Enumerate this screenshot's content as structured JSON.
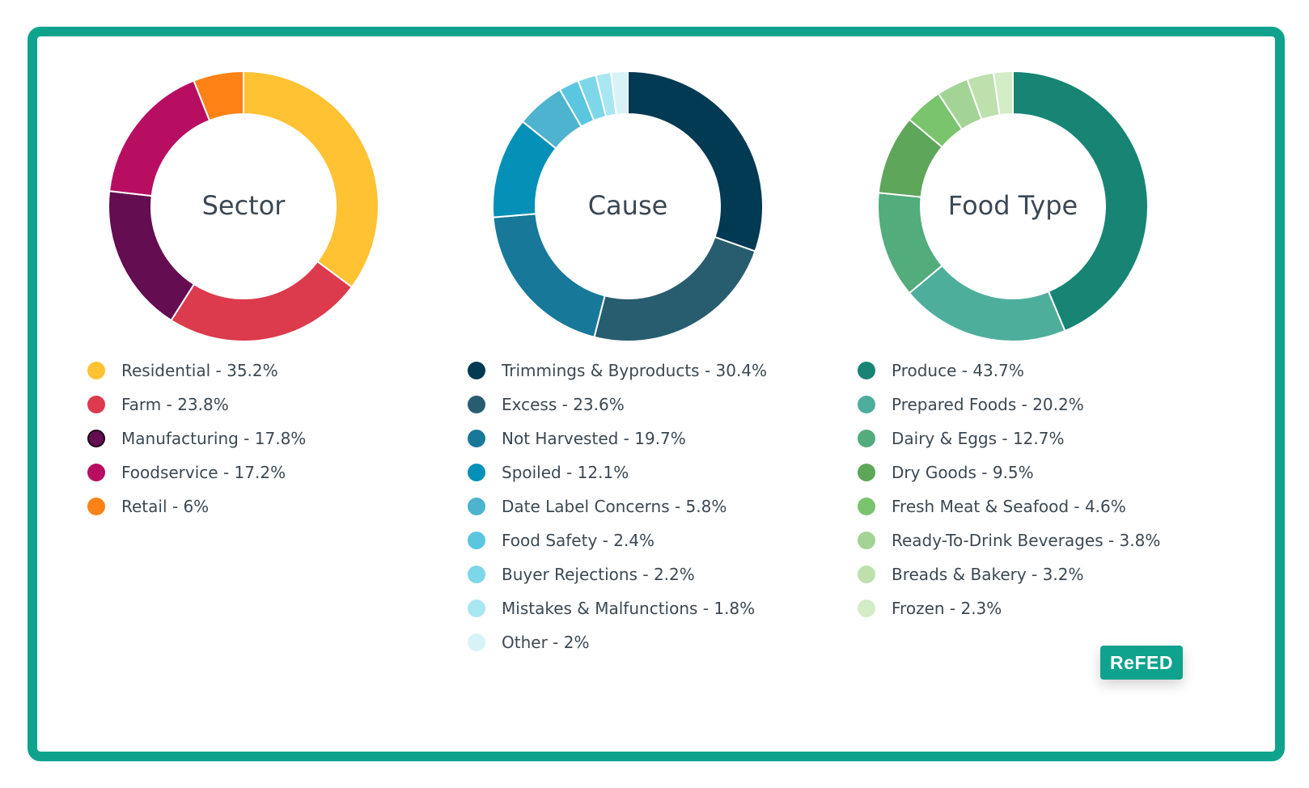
{
  "brand": {
    "name": "ReFED",
    "frame_color": "#0fa38d"
  },
  "chart_data": [
    {
      "type": "pie",
      "title": "Sector",
      "series": [
        {
          "name": "Residential",
          "value": 35.2,
          "label": "Residential - 35.2%",
          "color": "#ffc233"
        },
        {
          "name": "Farm",
          "value": 23.8,
          "label": "Farm - 23.8%",
          "color": "#dc3a4d"
        },
        {
          "name": "Manufacturing",
          "value": 17.8,
          "label": "Manufacturing - 17.8%",
          "color": "#640d50"
        },
        {
          "name": "Foodservice",
          "value": 17.2,
          "label": "Foodservice - 17.2%",
          "color": "#b80e62"
        },
        {
          "name": "Retail",
          "value": 6,
          "label": "Retail - 6%",
          "color": "#ff8216"
        }
      ]
    },
    {
      "type": "pie",
      "title": "Cause",
      "series": [
        {
          "name": "Trimmings & Byproducts",
          "value": 30.4,
          "label": "Trimmings & Byproducts - 30.4%",
          "color": "#023953"
        },
        {
          "name": "Excess",
          "value": 23.6,
          "label": "Excess - 23.6%",
          "color": "#285d70"
        },
        {
          "name": "Not Harvested",
          "value": 19.7,
          "label": "Not Harvested - 19.7%",
          "color": "#17789a"
        },
        {
          "name": "Spoiled",
          "value": 12.1,
          "label": "Spoiled - 12.1%",
          "color": "#0590b8"
        },
        {
          "name": "Date Label Concerns",
          "value": 5.8,
          "label": "Date Label Concerns - 5.8%",
          "color": "#4db3ce"
        },
        {
          "name": "Food Safety",
          "value": 2.4,
          "label": "Food Safety - 2.4%",
          "color": "#5ac6df"
        },
        {
          "name": "Buyer Rejections",
          "value": 2.2,
          "label": "Buyer Rejections - 2.2%",
          "color": "#7ed6e9"
        },
        {
          "name": "Mistakes & Malfunctions",
          "value": 1.8,
          "label": "Mistakes & Malfunctions - 1.8%",
          "color": "#a8e6f2"
        },
        {
          "name": "Other",
          "value": 2,
          "label": "Other - 2%",
          "color": "#d7f3f8"
        }
      ]
    },
    {
      "type": "pie",
      "title": "Food Type",
      "series": [
        {
          "name": "Produce",
          "value": 43.7,
          "label": "Produce - 43.7%",
          "color": "#178474"
        },
        {
          "name": "Prepared Foods",
          "value": 20.2,
          "label": "Prepared Foods - 20.2%",
          "color": "#4eae9c"
        },
        {
          "name": "Dairy & Eggs",
          "value": 12.7,
          "label": "Dairy & Eggs - 12.7%",
          "color": "#52ac7c"
        },
        {
          "name": "Dry Goods",
          "value": 9.5,
          "label": "Dry Goods - 9.5%",
          "color": "#5ea65a"
        },
        {
          "name": "Fresh Meat & Seafood",
          "value": 4.6,
          "label": "Fresh Meat & Seafood - 4.6%",
          "color": "#79c46d"
        },
        {
          "name": "Ready-To-Drink Beverages",
          "value": 3.8,
          "label": "Ready-To-Drink Beverages - 3.8%",
          "color": "#a3d496"
        },
        {
          "name": "Breads & Bakery",
          "value": 3.2,
          "label": "Breads & Bakery - 3.2%",
          "color": "#bde0ad"
        },
        {
          "name": "Frozen",
          "value": 2.3,
          "label": "Frozen - 2.3%",
          "color": "#d3edc6"
        }
      ]
    }
  ]
}
